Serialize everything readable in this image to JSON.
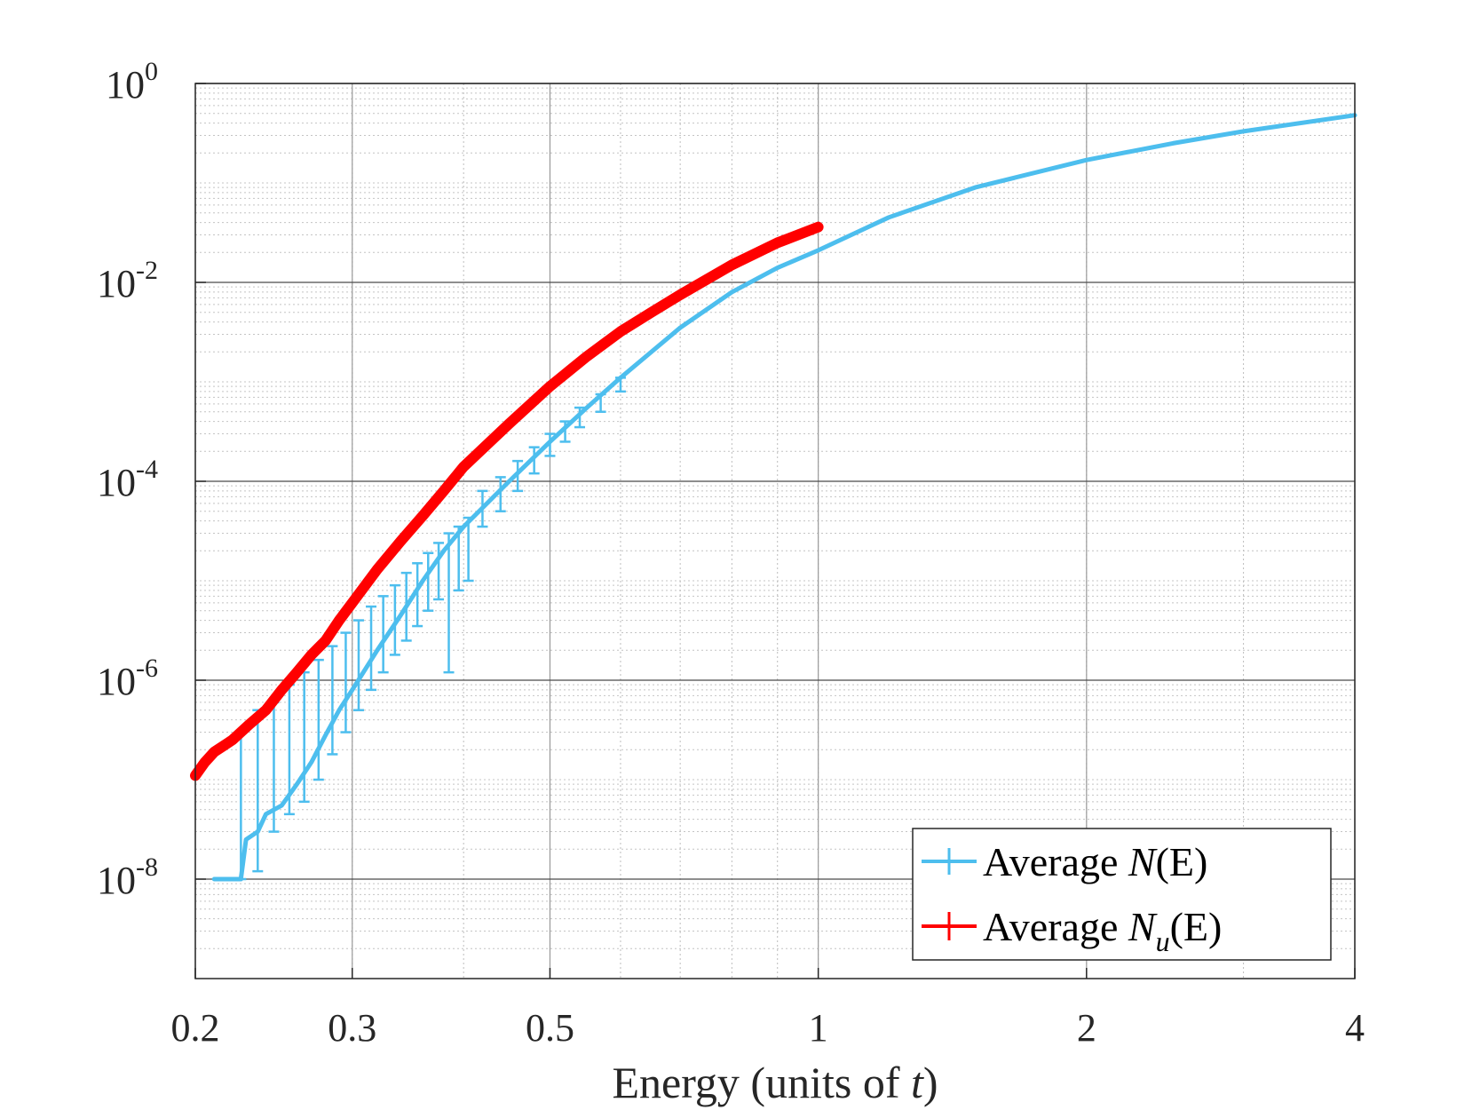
{
  "chart_data": {
    "type": "line",
    "xscale": "log",
    "yscale": "log",
    "xlim": [
      0.2,
      4
    ],
    "ylim": [
      1e-09,
      1
    ],
    "xlabel": {
      "main": "Energy (units of ",
      "var": "t",
      "close": ")"
    },
    "xticks": [
      {
        "value": 0.2,
        "label": "0.2"
      },
      {
        "value": 0.3,
        "label": "0.3"
      },
      {
        "value": 0.5,
        "label": "0.5"
      },
      {
        "value": 1,
        "label": "1"
      },
      {
        "value": 2,
        "label": "2"
      },
      {
        "value": 4,
        "label": "4"
      }
    ],
    "yticks": [
      {
        "value": 1,
        "base": "10",
        "exp": "0"
      },
      {
        "value": 0.01,
        "base": "10",
        "exp": "-2"
      },
      {
        "value": 0.0001,
        "base": "10",
        "exp": "-4"
      },
      {
        "value": 1e-06,
        "base": "10",
        "exp": "-6"
      },
      {
        "value": 1e-08,
        "base": "10",
        "exp": "-8"
      }
    ],
    "grid": true,
    "legend_position": "bottom-right",
    "series": [
      {
        "name": "Average N(E)",
        "legend_prefix": "Average ",
        "legend_var": "N",
        "legend_sub": "",
        "legend_arg": "(E)",
        "color": "#4DBEEE",
        "errorbars": true,
        "points": [
          [
            0.21,
            1e-08
          ],
          [
            0.225,
            1e-08
          ],
          [
            0.228,
            2.5e-08
          ],
          [
            0.235,
            3e-08
          ],
          [
            0.24,
            4.5e-08
          ],
          [
            0.25,
            5.5e-08
          ],
          [
            0.26,
            9e-08
          ],
          [
            0.27,
            1.5e-07
          ],
          [
            0.28,
            2.8e-07
          ],
          [
            0.29,
            5e-07
          ],
          [
            0.3,
            8e-07
          ],
          [
            0.32,
            2e-06
          ],
          [
            0.34,
            4.5e-06
          ],
          [
            0.36,
            1e-05
          ],
          [
            0.38,
            2e-05
          ],
          [
            0.4,
            3.5e-05
          ],
          [
            0.45,
            0.0001
          ],
          [
            0.5,
            0.00025
          ],
          [
            0.55,
            0.00055
          ],
          [
            0.6,
            0.0011
          ],
          [
            0.7,
            0.0035
          ],
          [
            0.8,
            0.008
          ],
          [
            0.9,
            0.014
          ],
          [
            1.0,
            0.021
          ],
          [
            1.2,
            0.045
          ],
          [
            1.5,
            0.09
          ],
          [
            2.0,
            0.17
          ],
          [
            2.5,
            0.25
          ],
          [
            3.0,
            0.33
          ],
          [
            4.0,
            0.48
          ]
        ],
        "error_bars": [
          [
            0.225,
            1e-08,
            3e-07
          ],
          [
            0.235,
            1.2e-08,
            5e-07
          ],
          [
            0.245,
            3e-08,
            6e-07
          ],
          [
            0.255,
            4.5e-08,
            9e-07
          ],
          [
            0.265,
            6e-08,
            1.2e-06
          ],
          [
            0.275,
            1e-07,
            1.6e-06
          ],
          [
            0.285,
            1.8e-07,
            2.2e-06
          ],
          [
            0.295,
            3e-07,
            3e-06
          ],
          [
            0.305,
            5e-07,
            4e-06
          ],
          [
            0.315,
            8e-07,
            5.5e-06
          ],
          [
            0.325,
            1.2e-06,
            7e-06
          ],
          [
            0.335,
            1.8e-06,
            9e-06
          ],
          [
            0.345,
            2.5e-06,
            1.2e-05
          ],
          [
            0.355,
            3.5e-06,
            1.5e-05
          ],
          [
            0.365,
            5e-06,
            1.9e-05
          ],
          [
            0.375,
            6.5e-06,
            2.4e-05
          ],
          [
            0.385,
            1.2e-06,
            3e-05
          ],
          [
            0.395,
            8e-06,
            3.5e-05
          ],
          [
            0.405,
            1e-05,
            4.3e-05
          ],
          [
            0.42,
            3.5e-05,
            8e-05
          ],
          [
            0.44,
            5e-05,
            0.00011
          ],
          [
            0.46,
            8e-05,
            0.00016
          ],
          [
            0.48,
            0.00012,
            0.00022
          ],
          [
            0.5,
            0.00018,
            0.0003
          ],
          [
            0.52,
            0.00025,
            0.0004
          ],
          [
            0.54,
            0.00035,
            0.00055
          ],
          [
            0.57,
            0.0005,
            0.00075
          ],
          [
            0.6,
            0.0008,
            0.0011
          ]
        ]
      },
      {
        "name": "Average Nu(E)",
        "legend_prefix": "Average ",
        "legend_var": "N",
        "legend_sub": "u",
        "legend_arg": "(E)",
        "color": "#FF0000",
        "errorbars": false,
        "points": [
          [
            0.2,
            1.1e-07
          ],
          [
            0.205,
            1.5e-07
          ],
          [
            0.21,
            1.9e-07
          ],
          [
            0.22,
            2.5e-07
          ],
          [
            0.23,
            3.6e-07
          ],
          [
            0.24,
            5e-07
          ],
          [
            0.25,
            8e-07
          ],
          [
            0.26,
            1.2e-06
          ],
          [
            0.27,
            1.8e-06
          ],
          [
            0.28,
            2.5e-06
          ],
          [
            0.29,
            4e-06
          ],
          [
            0.3,
            6e-06
          ],
          [
            0.32,
            1.3e-05
          ],
          [
            0.34,
            2.5e-05
          ],
          [
            0.36,
            4.5e-05
          ],
          [
            0.38,
            8e-05
          ],
          [
            0.4,
            0.00014
          ],
          [
            0.45,
            0.00038
          ],
          [
            0.5,
            0.0009
          ],
          [
            0.55,
            0.0018
          ],
          [
            0.6,
            0.0032
          ],
          [
            0.65,
            0.005
          ],
          [
            0.7,
            0.0075
          ],
          [
            0.8,
            0.015
          ],
          [
            0.9,
            0.025
          ],
          [
            1.0,
            0.036
          ]
        ]
      }
    ]
  }
}
